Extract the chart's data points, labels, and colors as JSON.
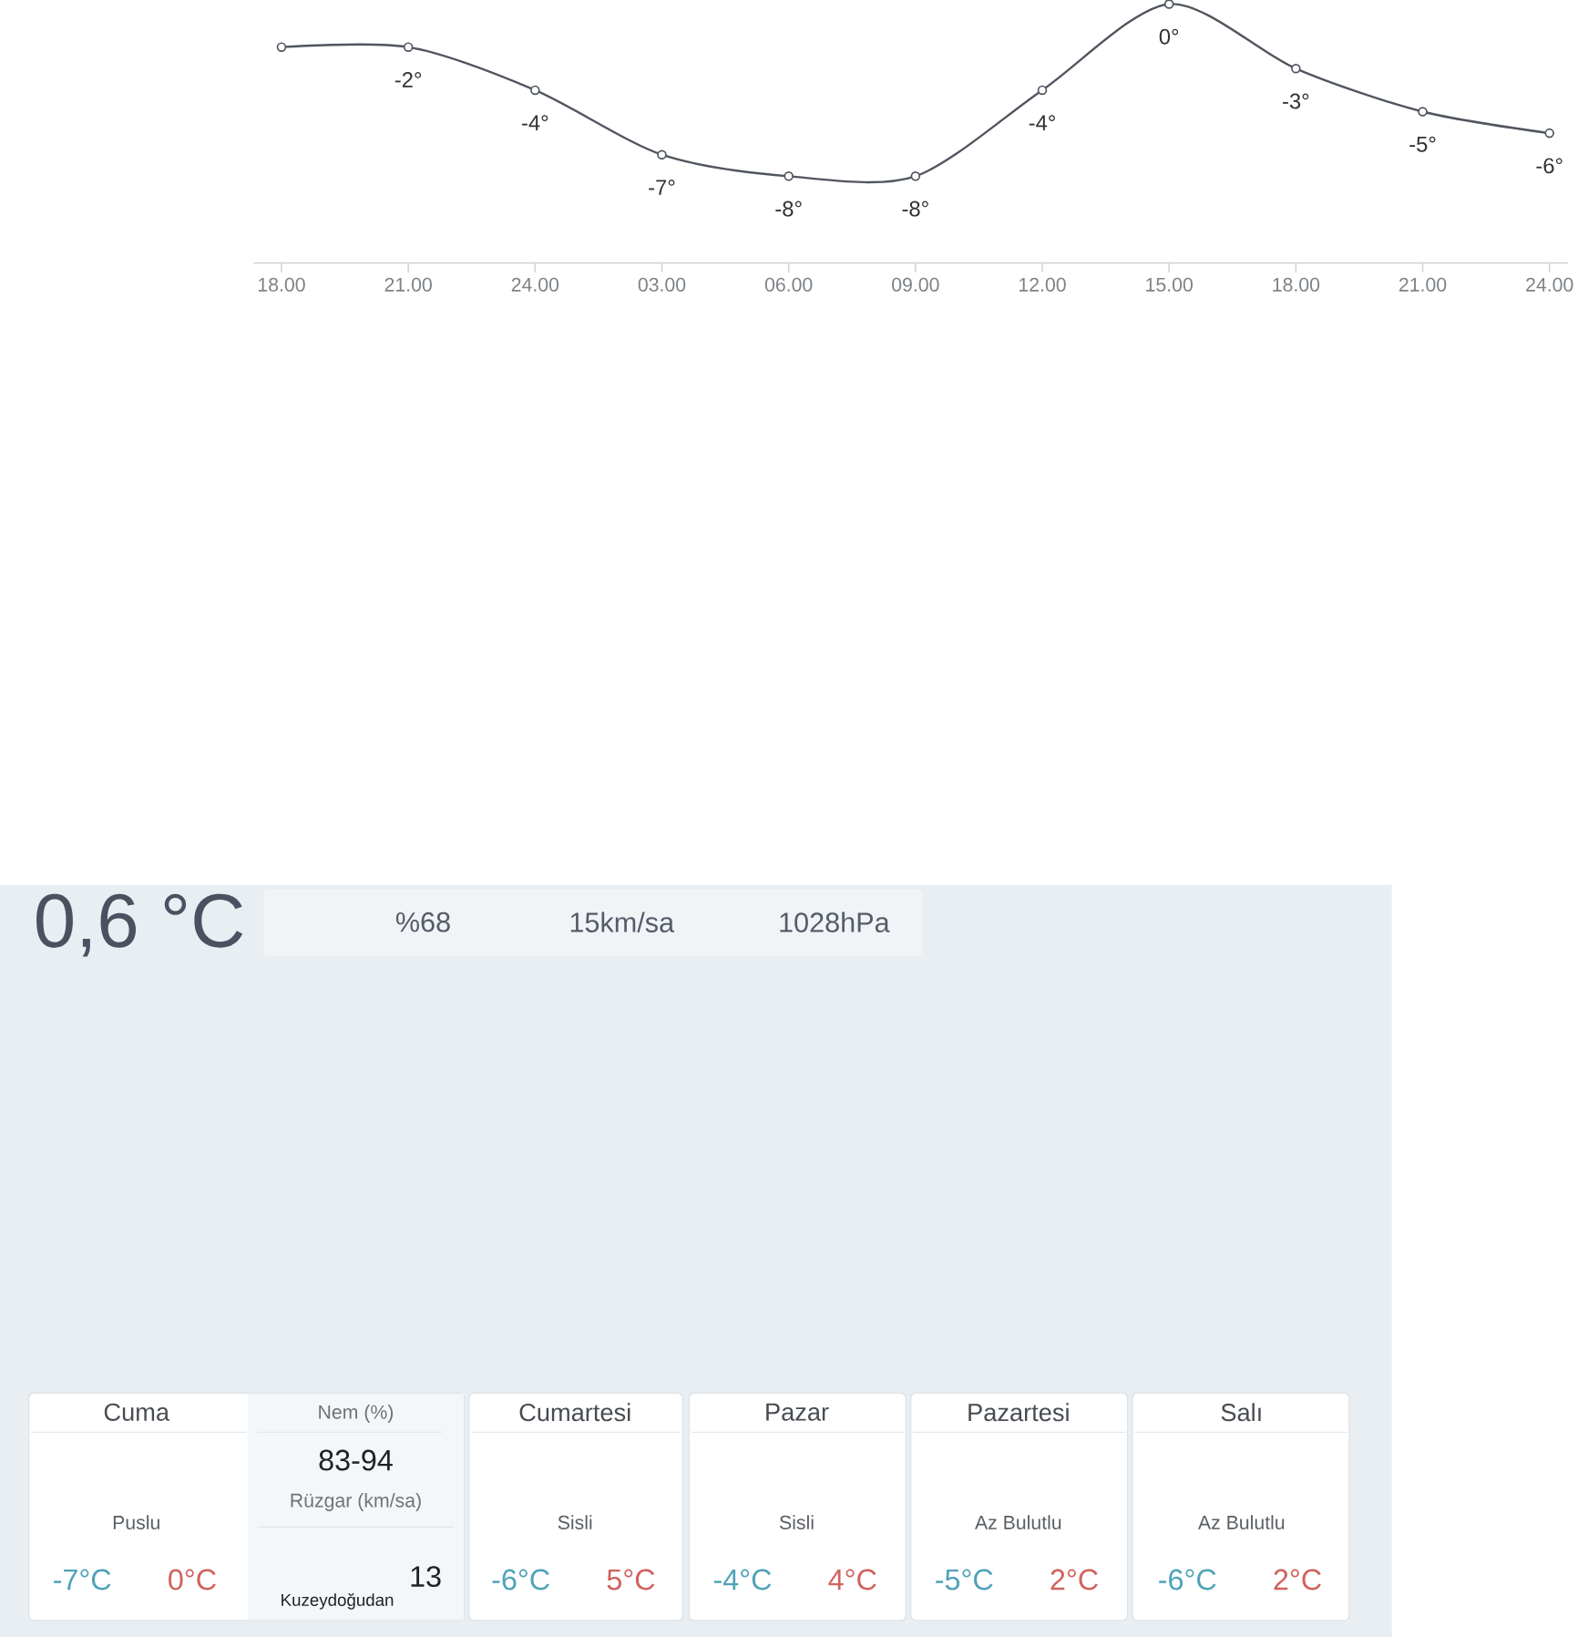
{
  "chart_data": [
    {
      "type": "other",
      "title": "0,6 °C",
      "annotations": [
        "%68",
        "15km/sa",
        "1028hPa"
      ]
    },
    {
      "type": "line",
      "categories": [
        "18.00",
        "21.00",
        "24.00",
        "03.00",
        "06.00",
        "09.00",
        "12.00",
        "15.00",
        "18.00",
        "21.00",
        "24.00"
      ],
      "values": [
        -2,
        -2,
        -4,
        -7,
        -8,
        -8,
        -4,
        0,
        -3,
        -5,
        -6
      ],
      "value_labels": [
        null,
        "-2°",
        "-4°",
        "-7°",
        "-8°",
        "-8°",
        "-4°",
        "0°",
        "-3°",
        "-5°",
        "-6°"
      ],
      "color": "#50555f",
      "marker": "circle",
      "line_style": "solid"
    },
    {
      "type": "other",
      "title": "Cuma",
      "annotations": [
        "Puslu",
        "-7°C",
        "0°C",
        "Nem (%)",
        "83-94",
        "Rüzgar (km/sa)",
        "13",
        "Kuzeydoğudan"
      ]
    },
    {
      "type": "other",
      "title": "Cumartesi",
      "annotations": [
        "Sisli",
        "-6°C",
        "5°C"
      ]
    },
    {
      "type": "other",
      "title": "Pazar",
      "annotations": [
        "Sisli",
        "-4°C",
        "4°C"
      ]
    },
    {
      "type": "other",
      "title": "Pazartesi",
      "annotations": [
        "Az Bulutlu",
        "-5°C",
        "2°C"
      ]
    },
    {
      "type": "other",
      "title": "Salı",
      "annotations": [
        "Az Bulutlu",
        "-6°C",
        "2°C"
      ]
    }
  ]
}
